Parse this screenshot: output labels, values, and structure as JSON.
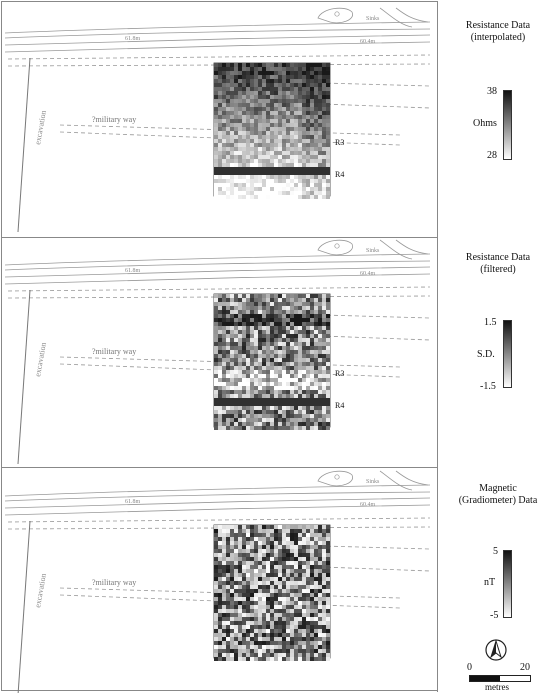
{
  "panels": [
    {
      "id": "interpolated",
      "title_line1": "Resistance Data",
      "title_line2": "(interpolated)",
      "legend_max": "38",
      "legend_unit": "Ohms",
      "legend_min": "28",
      "feature_labels": [
        "R3",
        "R4"
      ]
    },
    {
      "id": "filtered",
      "title_line1": "Resistance Data",
      "title_line2": "(filtered)",
      "legend_max": "1.5",
      "legend_unit": "S.D.",
      "legend_min": "-1.5",
      "feature_labels": [
        "R3",
        "R4"
      ]
    },
    {
      "id": "magnetic",
      "title_line1": "Magnetic",
      "title_line2": "(Gradiometer) Data",
      "legend_max": "5",
      "legend_unit": "nT",
      "legend_min": "-5",
      "feature_labels": []
    }
  ],
  "map_labels": {
    "sinks": "Sinks",
    "spot_height_left": "61.8m",
    "spot_height_right": "60.4m",
    "excavation": "excavation",
    "military_way": "?military way"
  },
  "scale_bar": {
    "min_label": "0",
    "max_label": "20",
    "unit_label": "metres"
  },
  "north_arrow_icon": "north-arrow-icon"
}
